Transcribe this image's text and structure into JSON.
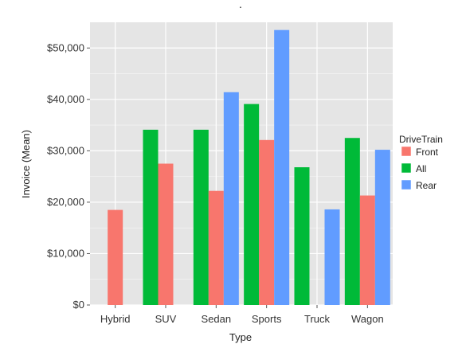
{
  "chart_data": {
    "type": "bar",
    "title": ".",
    "xlabel": "Type",
    "ylabel": "Invoice (Mean)",
    "categories": [
      "Hybrid",
      "SUV",
      "Sedan",
      "Sports",
      "Truck",
      "Wagon"
    ],
    "ylim": [
      0,
      55000
    ],
    "yticks": [
      0,
      10000,
      20000,
      30000,
      40000,
      50000
    ],
    "ytick_labels": [
      "$0",
      "$10,000",
      "$20,000",
      "$30,000",
      "$40,000",
      "$50,000"
    ],
    "grid": true,
    "legend": {
      "title": "DriveTrain",
      "placement": "right"
    },
    "series": [
      {
        "name": "Front",
        "color": "#F8766D",
        "values": [
          18500,
          27500,
          22200,
          32100,
          null,
          21300
        ]
      },
      {
        "name": "All",
        "color": "#00BA38",
        "values": [
          null,
          34100,
          34100,
          39100,
          26800,
          32500
        ]
      },
      {
        "name": "Rear",
        "color": "#619CFF",
        "values": [
          null,
          null,
          41400,
          53500,
          18600,
          30200
        ]
      }
    ],
    "bar_order": [
      "All",
      "Front",
      "Rear"
    ],
    "panel_color": "#E5E5E5",
    "grid_color": "#FFFFFF"
  }
}
